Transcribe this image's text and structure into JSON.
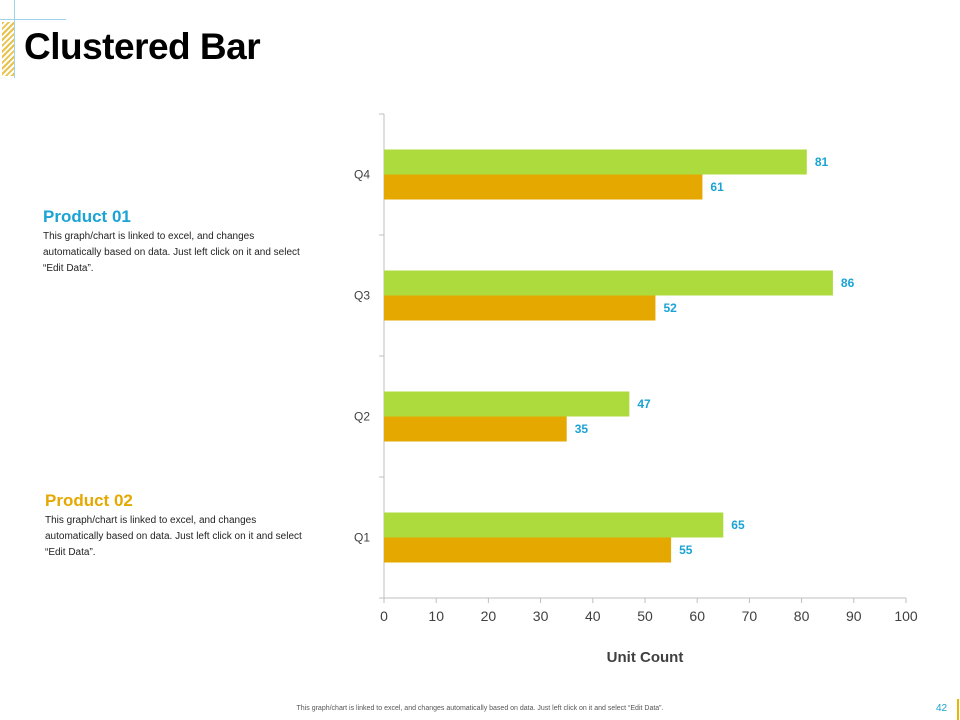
{
  "slide": {
    "title": "Clustered  Bar",
    "footer_note": "This graph/chart is linked to excel, and changes automatically based on data. Just left click on it and select “Edit Data”.",
    "page_number": "42"
  },
  "legend": [
    {
      "title": "Product 01",
      "text": "This graph/chart is linked to excel, and changes automatically based on data. Just left click on it and select “Edit Data”."
    },
    {
      "title": "Product 02",
      "text": "This graph/chart is linked to excel, and changes automatically based on data. Just left click on it and select “Edit Data”."
    }
  ],
  "colors": {
    "product_01": "#addb3e",
    "product_02": "#e5a800",
    "legend_01_title": "#1aa3d4",
    "legend_02_title": "#e5a800",
    "data_label": "#1aa3d4"
  },
  "chart_data": {
    "type": "bar",
    "orientation": "horizontal",
    "title": "",
    "xlabel": "Unit Count",
    "ylabel": "",
    "categories": [
      "Q1",
      "Q2",
      "Q3",
      "Q4"
    ],
    "series": [
      {
        "name": "Product 01",
        "values": [
          65,
          47,
          86,
          81
        ]
      },
      {
        "name": "Product 02",
        "values": [
          55,
          35,
          52,
          61
        ]
      }
    ],
    "xlim": [
      0,
      100
    ],
    "x_ticks": [
      0,
      10,
      20,
      30,
      40,
      50,
      60,
      70,
      80,
      90,
      100
    ],
    "grid": false,
    "data_labels": true
  }
}
